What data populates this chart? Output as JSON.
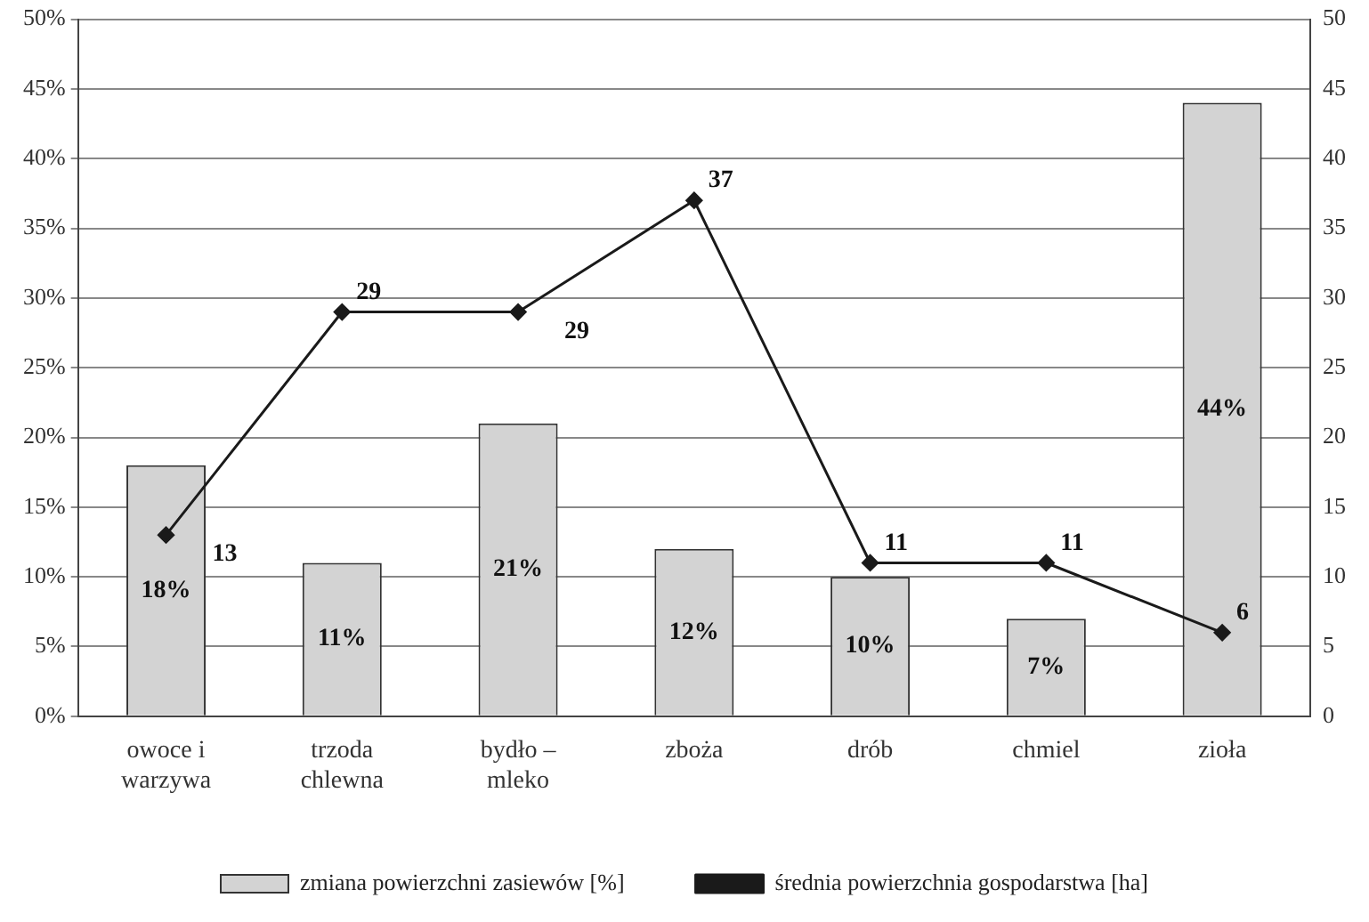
{
  "chart_data": {
    "type": "bar",
    "categories": [
      "owoce i warzywa",
      "trzoda chlewna",
      "bydło – mleko",
      "zboża",
      "drób",
      "chmiel",
      "zioła"
    ],
    "series": [
      {
        "name": "zmiana powierzchni zasiewów [%]",
        "color": "#d3d3d3",
        "values": [
          18,
          11,
          21,
          12,
          10,
          7,
          44
        ],
        "value_labels": [
          "18%",
          "11%",
          "21%",
          "12%",
          "10%",
          "7%",
          "44%"
        ]
      },
      {
        "name": "średnia powierzchnia gospodarstwa [ha]",
        "type": "line",
        "axis": "y2",
        "color": "#1a1a1a",
        "values": [
          13,
          29,
          29,
          37,
          11,
          11,
          6
        ],
        "value_labels": [
          "13",
          "29",
          "29",
          "37",
          "11",
          "11",
          "6"
        ]
      }
    ],
    "ylim": [
      0,
      50
    ],
    "yticks": [
      {
        "value": 0,
        "label": "0%"
      },
      {
        "value": 5,
        "label": "5%"
      },
      {
        "value": 10,
        "label": "10%"
      },
      {
        "value": 15,
        "label": "15%"
      },
      {
        "value": 20,
        "label": "20%"
      },
      {
        "value": 25,
        "label": "25%"
      },
      {
        "value": 30,
        "label": "30%"
      },
      {
        "value": 35,
        "label": "35%"
      },
      {
        "value": 40,
        "label": "40%"
      },
      {
        "value": 45,
        "label": "45%"
      },
      {
        "value": 50,
        "label": "50%"
      }
    ],
    "y2lim": [
      0,
      50
    ],
    "y2ticks": [
      0,
      5,
      10,
      15,
      20,
      25,
      30,
      35,
      40,
      45,
      50
    ],
    "grid": "y",
    "legend": "bottom",
    "marker": "diamond",
    "line_style": "solid"
  }
}
